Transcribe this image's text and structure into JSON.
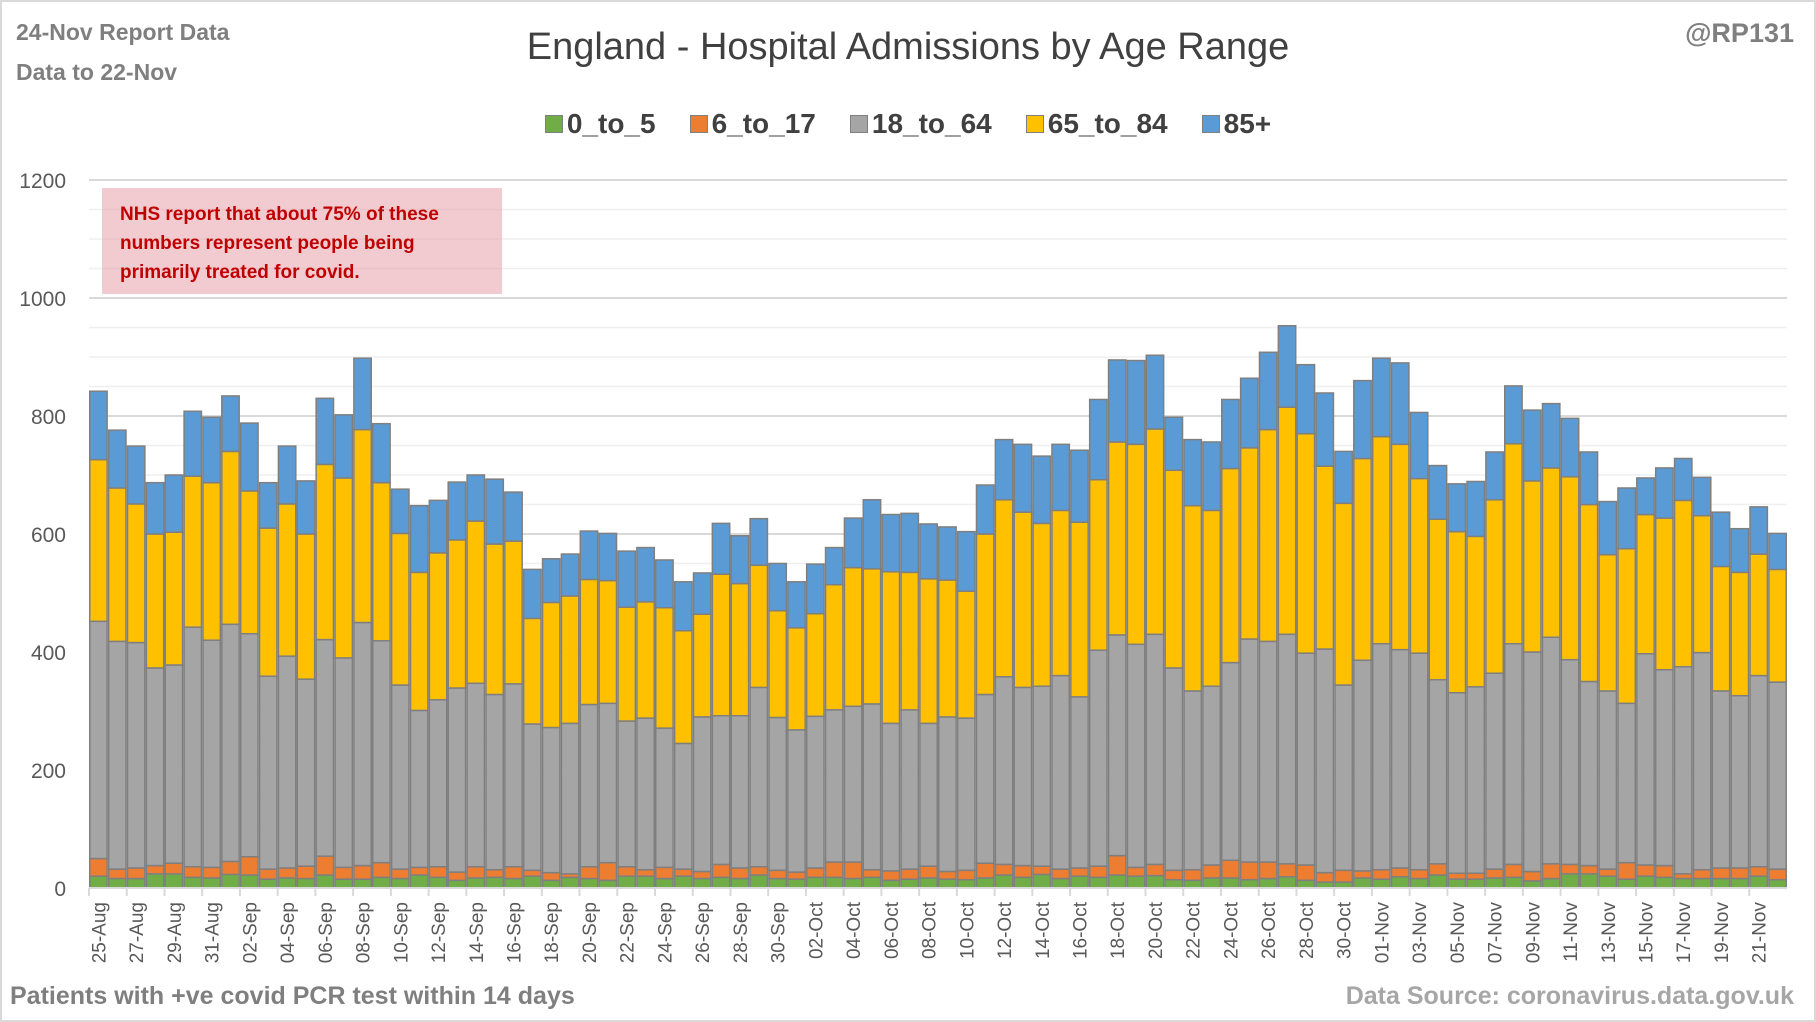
{
  "header": {
    "report_line1": "24-Nov Report Data",
    "report_line2": "Data to 22-Nov",
    "handle": "@RP131"
  },
  "note": {
    "text": "NHS report that about 75% of these numbers represent people being primarily treated for covid.",
    "line1": "NHS report that about 75% of these",
    "line2": "numbers represent people being",
    "line3": "primarily treated for covid."
  },
  "footer": {
    "left": "Patients with  +ve covid PCR test within 14 days",
    "right": "Data Source: coronavirus.data.gov.uk"
  },
  "chart_data": {
    "type": "bar",
    "stacked": true,
    "title": "England - Hospital Admissions by Age Range",
    "xlabel": "",
    "ylabel": "",
    "ylim": [
      0,
      1200
    ],
    "yticks": [
      0,
      200,
      400,
      600,
      800,
      1000,
      1200
    ],
    "grid": true,
    "legend_position": "top",
    "x_label_every": 2,
    "categories": [
      "25-Aug",
      "26-Aug",
      "27-Aug",
      "28-Aug",
      "29-Aug",
      "30-Aug",
      "31-Aug",
      "01-Sep",
      "02-Sep",
      "03-Sep",
      "04-Sep",
      "05-Sep",
      "06-Sep",
      "07-Sep",
      "08-Sep",
      "09-Sep",
      "10-Sep",
      "11-Sep",
      "12-Sep",
      "13-Sep",
      "14-Sep",
      "15-Sep",
      "16-Sep",
      "17-Sep",
      "18-Sep",
      "19-Sep",
      "20-Sep",
      "21-Sep",
      "22-Sep",
      "23-Sep",
      "24-Sep",
      "25-Sep",
      "26-Sep",
      "27-Sep",
      "28-Sep",
      "29-Sep",
      "30-Sep",
      "01-Oct",
      "02-Oct",
      "03-Oct",
      "04-Oct",
      "05-Oct",
      "06-Oct",
      "07-Oct",
      "08-Oct",
      "09-Oct",
      "10-Oct",
      "11-Oct",
      "12-Oct",
      "13-Oct",
      "14-Oct",
      "15-Oct",
      "16-Oct",
      "17-Oct",
      "18-Oct",
      "19-Oct",
      "20-Oct",
      "21-Oct",
      "22-Oct",
      "23-Oct",
      "24-Oct",
      "25-Oct",
      "26-Oct",
      "27-Oct",
      "28-Oct",
      "29-Oct",
      "30-Oct",
      "31-Oct",
      "01-Nov",
      "02-Nov",
      "03-Nov",
      "04-Nov",
      "05-Nov",
      "06-Nov",
      "07-Nov",
      "08-Nov",
      "09-Nov",
      "10-Nov",
      "11-Nov",
      "12-Nov",
      "13-Nov",
      "14-Nov",
      "15-Nov",
      "16-Nov",
      "17-Nov",
      "18-Nov",
      "19-Nov",
      "20-Nov",
      "21-Nov",
      "22-Nov"
    ],
    "series": [
      {
        "name": "0_to_5",
        "color": "#70ad47",
        "values": [
          20,
          16,
          16,
          24,
          24,
          18,
          17,
          23,
          22,
          15,
          17,
          16,
          22,
          15,
          15,
          18,
          16,
          22,
          18,
          13,
          17,
          18,
          16,
          20,
          13,
          18,
          16,
          13,
          20,
          20,
          16,
          20,
          16,
          18,
          16,
          22,
          16,
          15,
          18,
          18,
          16,
          18,
          13,
          15,
          17,
          15,
          14,
          17,
          22,
          18,
          23,
          16,
          20,
          18,
          22,
          20,
          21,
          14,
          13,
          17,
          17,
          14,
          16,
          19,
          13,
          10,
          10,
          17,
          15,
          19,
          16,
          22,
          15,
          15,
          17,
          18,
          12,
          16,
          24,
          24,
          20,
          15,
          20,
          18,
          16,
          16,
          16,
          16,
          20,
          14
        ]
      },
      {
        "name": "6_to_17",
        "color": "#ed7d31",
        "values": [
          30,
          16,
          18,
          14,
          18,
          18,
          18,
          22,
          31,
          17,
          17,
          21,
          32,
          20,
          23,
          25,
          16,
          13,
          18,
          14,
          19,
          13,
          20,
          10,
          13,
          6,
          20,
          30,
          16,
          11,
          19,
          12,
          12,
          22,
          18,
          14,
          14,
          12,
          16,
          26,
          28,
          13,
          16,
          17,
          20,
          13,
          16,
          25,
          18,
          20,
          14,
          16,
          14,
          19,
          33,
          15,
          19,
          16,
          18,
          22,
          30,
          30,
          28,
          22,
          26,
          16,
          20,
          12,
          16,
          15,
          15,
          19,
          10,
          10,
          15,
          22,
          16,
          25,
          16,
          14,
          12,
          28,
          19,
          20,
          8,
          15,
          18,
          18,
          16,
          18
        ]
      },
      {
        "name": "18_to_64",
        "color": "#a5a5a5",
        "values": [
          402,
          386,
          382,
          335,
          336,
          406,
          385,
          402,
          378,
          327,
          359,
          317,
          367,
          355,
          412,
          376,
          312,
          266,
          283,
          312,
          311,
          297,
          310,
          248,
          246,
          255,
          275,
          270,
          247,
          257,
          236,
          213,
          262,
          252,
          258,
          304,
          259,
          241,
          257,
          258,
          264,
          281,
          250,
          270,
          242,
          262,
          258,
          286,
          318,
          302,
          305,
          328,
          290,
          366,
          374,
          378,
          390,
          343,
          303,
          303,
          335,
          378,
          374,
          389,
          359,
          379,
          314,
          357,
          383,
          370,
          367,
          312,
          306,
          316,
          332,
          374,
          372,
          384,
          347,
          312,
          302,
          270,
          358,
          332,
          351,
          368,
          300,
          292,
          324,
          317
        ]
      },
      {
        "name": "65_to_84",
        "color": "#ffc000",
        "values": [
          274,
          260,
          235,
          227,
          225,
          256,
          267,
          293,
          242,
          251,
          258,
          246,
          297,
          305,
          327,
          268,
          257,
          234,
          249,
          251,
          275,
          255,
          242,
          179,
          212,
          216,
          212,
          208,
          193,
          197,
          204,
          191,
          174,
          240,
          224,
          207,
          181,
          173,
          174,
          212,
          235,
          229,
          257,
          233,
          245,
          232,
          215,
          272,
          300,
          297,
          276,
          280,
          296,
          289,
          327,
          339,
          348,
          335,
          314,
          298,
          329,
          324,
          359,
          385,
          372,
          310,
          308,
          342,
          351,
          348,
          296,
          272,
          273,
          255,
          294,
          339,
          290,
          287,
          310,
          300,
          231,
          262,
          236,
          257,
          282,
          232,
          211,
          209,
          206,
          191
        ]
      },
      {
        "name": "85+",
        "color": "#5b9bd5",
        "values": [
          116,
          98,
          98,
          87,
          97,
          110,
          111,
          94,
          115,
          77,
          98,
          90,
          112,
          107,
          121,
          100,
          75,
          113,
          89,
          98,
          78,
          110,
          83,
          83,
          74,
          71,
          82,
          80,
          95,
          92,
          81,
          83,
          70,
          86,
          81,
          79,
          80,
          78,
          84,
          63,
          84,
          117,
          97,
          100,
          93,
          90,
          101,
          83,
          102,
          115,
          114,
          112,
          122,
          136,
          139,
          142,
          125,
          90,
          112,
          116,
          117,
          118,
          131,
          138,
          117,
          124,
          88,
          132,
          133,
          138,
          112,
          91,
          81,
          93,
          81,
          98,
          120,
          109,
          99,
          89,
          90,
          103,
          62,
          85,
          71,
          65,
          92,
          74,
          80,
          61
        ]
      }
    ]
  }
}
